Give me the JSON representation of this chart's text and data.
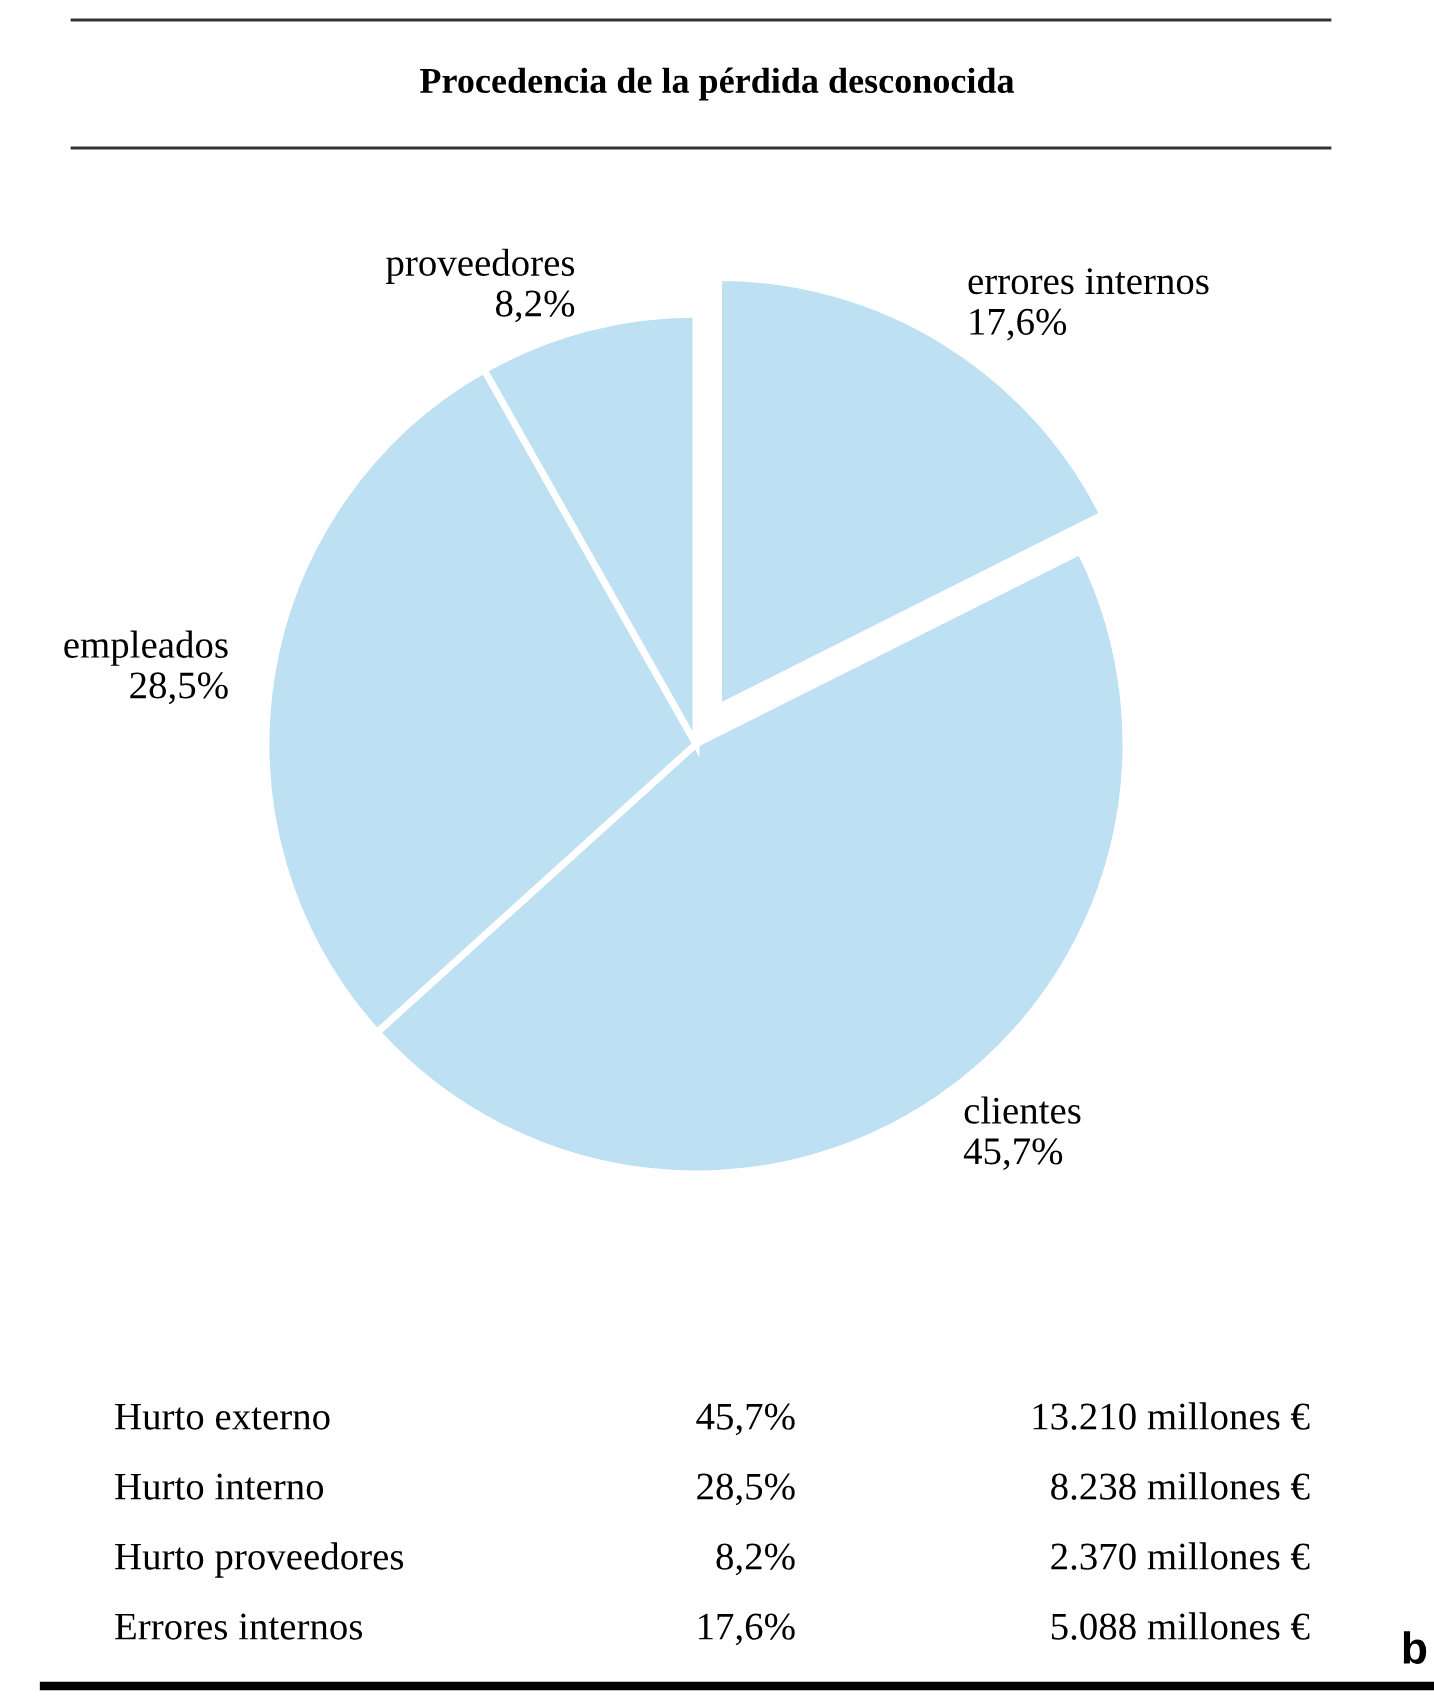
{
  "chart_data": {
    "type": "pie",
    "title": "Procedencia de la pérdida desconocida",
    "categories": [
      "errores internos",
      "clientes",
      "empleados",
      "proveedores"
    ],
    "values": [
      17.6,
      45.7,
      28.5,
      8.2
    ],
    "value_labels": [
      "17,6%",
      "45,7%",
      "28,5%",
      "8,2%"
    ],
    "colors": [
      "#bde0f3",
      "#bde0f3",
      "#bde0f3",
      "#bde0f3"
    ],
    "annotations": [
      "Hurto externo",
      "45,7%",
      "13.210 millones €",
      "Hurto interno",
      "28,5%",
      "8.238 millones €",
      "Hurto proveedores",
      "8,2%",
      "2.370 millones €",
      "Errores internos",
      "17,6%",
      "5.088 millones €",
      "b"
    ]
  }
}
